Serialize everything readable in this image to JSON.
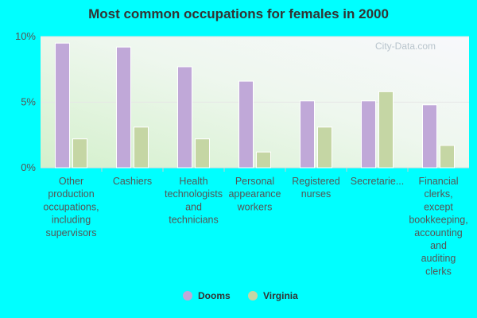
{
  "chart_data": {
    "type": "bar",
    "title": "Most common occupations for females in 2000",
    "categories": [
      [
        "Other",
        "production",
        "occupations,",
        "including",
        "supervisors"
      ],
      [
        "Cashiers"
      ],
      [
        "Health",
        "technologists",
        "and",
        "technicians"
      ],
      [
        "Personal",
        "appearance",
        "workers"
      ],
      [
        "Registered",
        "nurses"
      ],
      [
        "Secretarie..."
      ],
      [
        "Financial",
        "clerks,",
        "except",
        "bookkeeping,",
        "accounting",
        "and",
        "auditing",
        "clerks"
      ]
    ],
    "series": [
      {
        "name": "Dooms",
        "color": "#c0a8d8",
        "values": [
          9.5,
          9.2,
          7.7,
          6.6,
          5.1,
          5.1,
          4.8
        ]
      },
      {
        "name": "Virginia",
        "color": "#c5d6a4",
        "values": [
          2.2,
          3.1,
          2.2,
          1.2,
          3.1,
          5.8,
          1.7
        ]
      }
    ],
    "y_ticks": [
      {
        "value": 0,
        "label": "0%"
      },
      {
        "value": 5,
        "label": "5%"
      },
      {
        "value": 10,
        "label": "10%"
      }
    ],
    "ylim": [
      0,
      10
    ],
    "grid": true,
    "legend_position": "bottom-center",
    "watermark": "City-Data.com"
  }
}
